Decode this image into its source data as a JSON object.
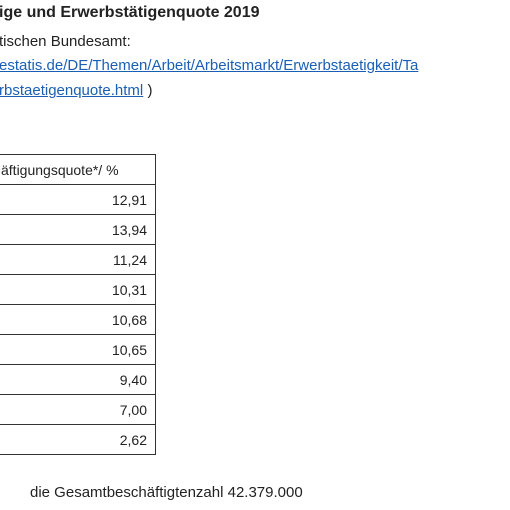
{
  "header": {
    "title": "ige und Erwerbstätigenquote 2019",
    "source": "tischen Bundesamt:",
    "link_line1": "estatis.de/DE/Themen/Arbeit/Arbeitsmarkt/Erwerbstaetigkeit/Ta",
    "link_line2": "rbstaetigenquote.html",
    "link_close": ")"
  },
  "table": {
    "header": "äftigungsquote*/ %",
    "rows": [
      "12,91",
      "13,94",
      "11,24",
      "10,31",
      "10,68",
      "10,65",
      "9,40",
      "7,00",
      "2,62"
    ]
  },
  "footnote": "die Gesamtbeschäftigtenzahl 42.379.000"
}
